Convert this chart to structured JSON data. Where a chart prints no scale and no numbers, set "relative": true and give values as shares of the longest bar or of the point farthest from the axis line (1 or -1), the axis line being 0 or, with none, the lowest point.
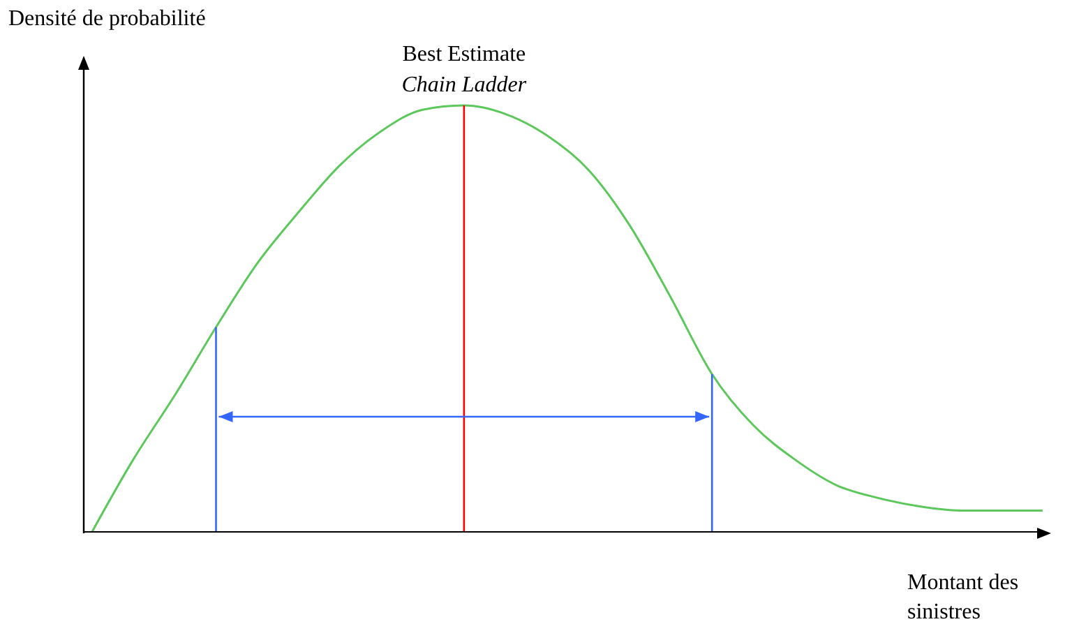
{
  "chart_data": {
    "type": "line",
    "relative": true,
    "xlabel": "Montant des sinistres",
    "ylabel": "Densité de probabilité",
    "categories": [
      null,
      null,
      null,
      null,
      null,
      null,
      null,
      null,
      null,
      null,
      null,
      null,
      null,
      null,
      null,
      null,
      null,
      null,
      null,
      null,
      null,
      null,
      null,
      null
    ],
    "series": [
      {
        "color": "#5cc85c",
        "values": [
          0,
          0.17,
          0.32,
          0.48,
          0.63,
          0.75,
          0.86,
          0.94,
          0.99,
          1,
          0.98,
          0.93,
          0.85,
          0.72,
          0.55,
          0.37,
          0.25,
          0.17,
          0.11,
          0.08,
          0.06,
          0.05,
          0.05,
          0.05
        ]
      }
    ],
    "annotations": [
      "Best Estimate",
      "Chain Ladder"
    ],
    "grid": false,
    "legend": false,
    "marker": "none",
    "line_style": "solid"
  }
}
